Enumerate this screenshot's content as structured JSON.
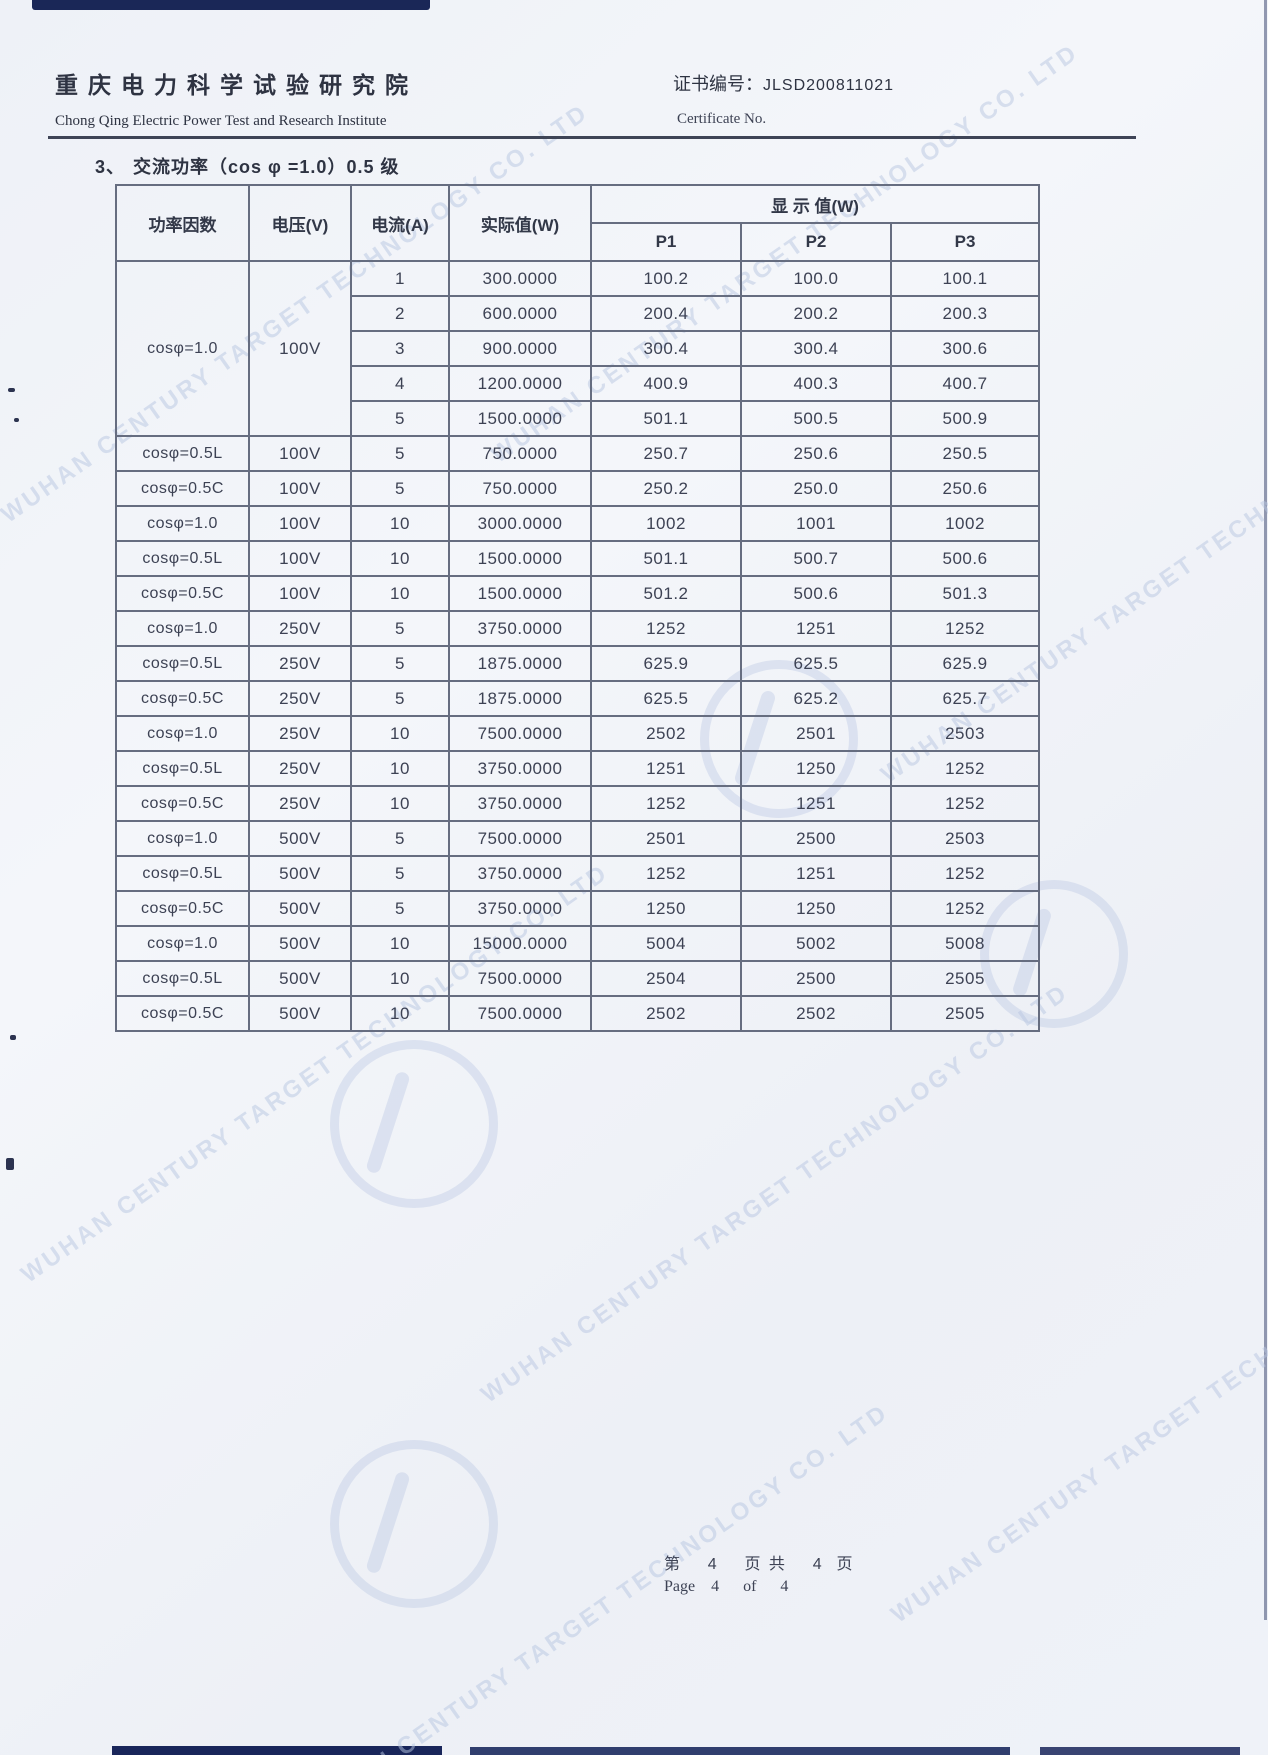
{
  "header": {
    "institute_cn": "重庆电力科学试验研究院",
    "institute_en": "Chong Qing Electric Power Test and Research Institute",
    "cert_label": "证书编号：",
    "cert_no": "JLSD200811021",
    "cert_label_en": "Certificate No."
  },
  "section": {
    "number": "3、",
    "title": "交流功率（cos φ =1.0）0.5 级"
  },
  "table": {
    "headers": {
      "power_factor": "功率因数",
      "voltage": "电压(V)",
      "current": "电流(A)",
      "actual": "实际值(W)",
      "display": "显 示 值(W)",
      "p1": "P1",
      "p2": "P2",
      "p3": "P3"
    },
    "rows": [
      {
        "pf": "cosφ=1.0",
        "pf_rowspan": 5,
        "voltage": "100V",
        "voltage_rowspan": 5,
        "current": "1",
        "actual": "300.0000",
        "p1": "100.2",
        "p2": "100.0",
        "p3": "100.1"
      },
      {
        "current": "2",
        "actual": "600.0000",
        "p1": "200.4",
        "p2": "200.2",
        "p3": "200.3"
      },
      {
        "current": "3",
        "actual": "900.0000",
        "p1": "300.4",
        "p2": "300.4",
        "p3": "300.6"
      },
      {
        "current": "4",
        "actual": "1200.0000",
        "p1": "400.9",
        "p2": "400.3",
        "p3": "400.7"
      },
      {
        "current": "5",
        "actual": "1500.0000",
        "p1": "501.1",
        "p2": "500.5",
        "p3": "500.9"
      },
      {
        "pf": "cosφ=0.5L",
        "voltage": "100V",
        "current": "5",
        "actual": "750.0000",
        "p1": "250.7",
        "p2": "250.6",
        "p3": "250.5"
      },
      {
        "pf": "cosφ=0.5C",
        "voltage": "100V",
        "current": "5",
        "actual": "750.0000",
        "p1": "250.2",
        "p2": "250.0",
        "p3": "250.6"
      },
      {
        "pf": "cosφ=1.0",
        "voltage": "100V",
        "current": "10",
        "actual": "3000.0000",
        "p1": "1002",
        "p2": "1001",
        "p3": "1002"
      },
      {
        "pf": "cosφ=0.5L",
        "voltage": "100V",
        "current": "10",
        "actual": "1500.0000",
        "p1": "501.1",
        "p2": "500.7",
        "p3": "500.6"
      },
      {
        "pf": "cosφ=0.5C",
        "voltage": "100V",
        "current": "10",
        "actual": "1500.0000",
        "p1": "501.2",
        "p2": "500.6",
        "p3": "501.3"
      },
      {
        "pf": "cosφ=1.0",
        "voltage": "250V",
        "current": "5",
        "actual": "3750.0000",
        "p1": "1252",
        "p2": "1251",
        "p3": "1252"
      },
      {
        "pf": "cosφ=0.5L",
        "voltage": "250V",
        "current": "5",
        "actual": "1875.0000",
        "p1": "625.9",
        "p2": "625.5",
        "p3": "625.9"
      },
      {
        "pf": "cosφ=0.5C",
        "voltage": "250V",
        "current": "5",
        "actual": "1875.0000",
        "p1": "625.5",
        "p2": "625.2",
        "p3": "625.7"
      },
      {
        "pf": "cosφ=1.0",
        "voltage": "250V",
        "current": "10",
        "actual": "7500.0000",
        "p1": "2502",
        "p2": "2501",
        "p3": "2503"
      },
      {
        "pf": "cosφ=0.5L",
        "voltage": "250V",
        "current": "10",
        "actual": "3750.0000",
        "p1": "1251",
        "p2": "1250",
        "p3": "1252"
      },
      {
        "pf": "cosφ=0.5C",
        "voltage": "250V",
        "current": "10",
        "actual": "3750.0000",
        "p1": "1252",
        "p2": "1251",
        "p3": "1252"
      },
      {
        "pf": "cosφ=1.0",
        "voltage": "500V",
        "current": "5",
        "actual": "7500.0000",
        "p1": "2501",
        "p2": "2500",
        "p3": "2503"
      },
      {
        "pf": "cosφ=0.5L",
        "voltage": "500V",
        "current": "5",
        "actual": "3750.0000",
        "p1": "1252",
        "p2": "1251",
        "p3": "1252"
      },
      {
        "pf": "cosφ=0.5C",
        "voltage": "500V",
        "current": "5",
        "actual": "3750.0000",
        "p1": "1250",
        "p2": "1250",
        "p3": "1252"
      },
      {
        "pf": "cosφ=1.0",
        "voltage": "500V",
        "current": "10",
        "actual": "15000.0000",
        "p1": "5004",
        "p2": "5002",
        "p3": "5008"
      },
      {
        "pf": "cosφ=0.5L",
        "voltage": "500V",
        "current": "10",
        "actual": "7500.0000",
        "p1": "2504",
        "p2": "2500",
        "p3": "2505"
      },
      {
        "pf": "cosφ=0.5C",
        "voltage": "500V",
        "current": "10",
        "actual": "7500.0000",
        "p1": "2502",
        "p2": "2502",
        "p3": "2505"
      }
    ]
  },
  "footer": {
    "cn": "第    4    页 共    4  页",
    "en": "Page    4      of      4"
  },
  "watermark": {
    "text_en": "WUHAN CENTURY TARGET TECHNOLOGY CO. LTD"
  },
  "colors": {
    "paper": "#f1f3f8",
    "ink": "#3d4254",
    "table_border": "#666d80",
    "scan_edge_navy": "#1a2757",
    "watermark_blue": "#b9c7e2"
  }
}
